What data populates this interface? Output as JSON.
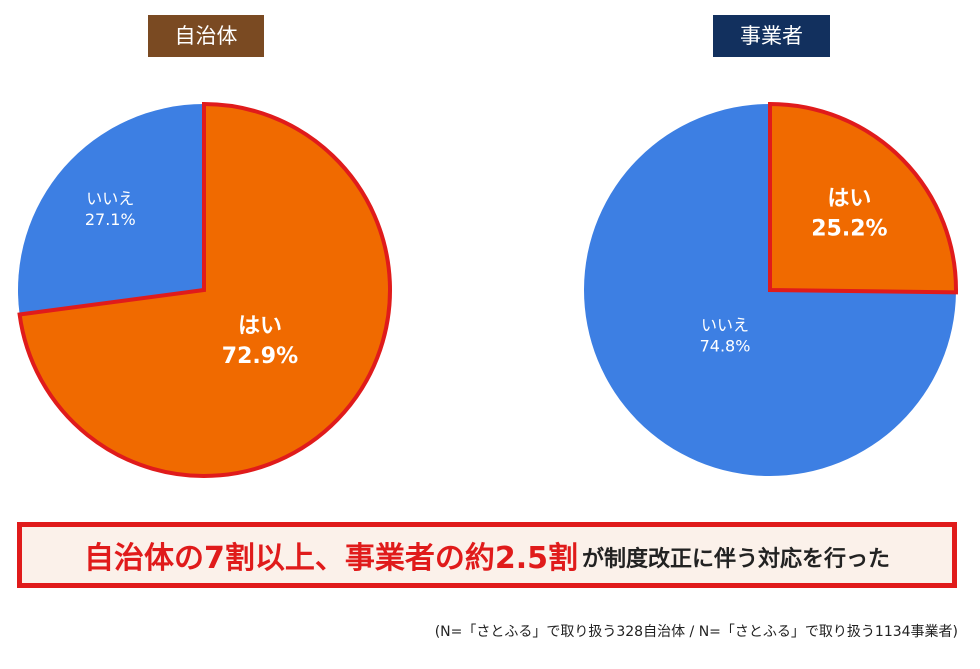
{
  "chart_data": [
    {
      "type": "pie",
      "title": "自治体",
      "slices": [
        {
          "label": "はい",
          "value": 72.9,
          "value_text": "72.9%",
          "color": "#f06a00",
          "highlighted": true
        },
        {
          "label": "いいえ",
          "value": 27.1,
          "value_text": "27.1%",
          "color": "#3d7fe3",
          "highlighted": false
        }
      ]
    },
    {
      "type": "pie",
      "title": "事業者",
      "slices": [
        {
          "label": "はい",
          "value": 25.2,
          "value_text": "25.2%",
          "color": "#f06a00",
          "highlighted": true
        },
        {
          "label": "いいえ",
          "value": 74.8,
          "value_text": "74.8%",
          "color": "#3d7fe3",
          "highlighted": false
        }
      ]
    }
  ],
  "colors": {
    "highlight_border": "#e01b1b",
    "left_tag_bg": "#7a4a22",
    "right_tag_bg": "#12305e"
  },
  "summary": {
    "highlight": "自治体の7割以上、事業者の約2.5割",
    "rest": "が制度改正に伴う対応を行った"
  },
  "footnote": "(N=「さとふる」で取り扱う328自治体 / N=「さとふる」で取り扱う1134事業者)"
}
